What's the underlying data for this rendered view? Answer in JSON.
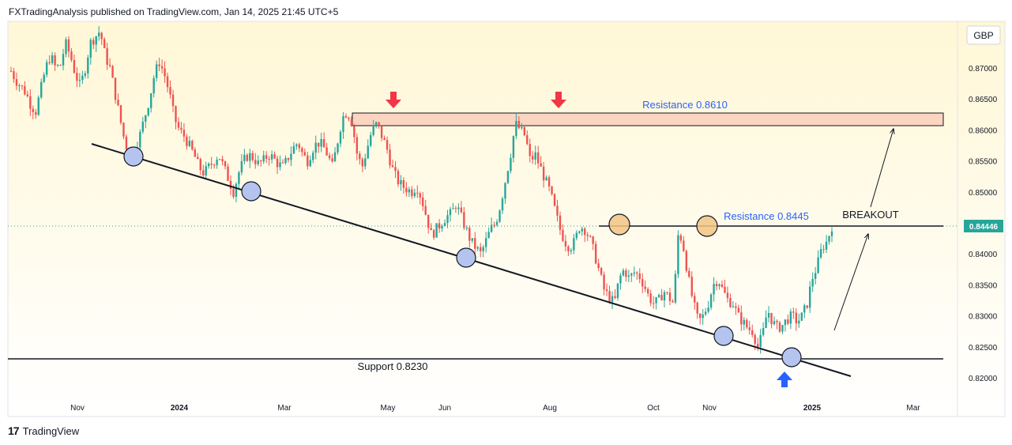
{
  "header": {
    "published": "FXTradingAnalysis published on TradingView.com, Jan 14, 2025 21:45 UTC+5"
  },
  "footer": {
    "brand": "TradingView",
    "logo": "tradingview-logo-icon"
  },
  "currency": "GBP",
  "price_tag": "0.84446",
  "colors": {
    "up": "#26a69a",
    "down": "#ef5350",
    "resistance_zone_fill": "#fbd5c0",
    "annotation_text": "#2962ff",
    "arrow_red": "#f23645",
    "arrow_blue": "#2962ff",
    "circle_blue": "#b5c4ef",
    "circle_orange": "#f2c486",
    "background_top": "#fff7d6",
    "background_bottom": "#ffffff"
  },
  "annotations": {
    "resistance_high": "Resistance 0.8610",
    "resistance_mid": "Resistance 0.8445",
    "breakout": "BREAKOUT",
    "support": "Support 0.8230"
  },
  "chart_data": {
    "type": "candlestick",
    "title": "",
    "xlabel": "",
    "ylabel": "",
    "x_ticks": [
      "Nov",
      "2024",
      "Mar",
      "May",
      "Jun",
      "Aug",
      "Oct",
      "Nov",
      "2025",
      "Mar"
    ],
    "y_ticks": [
      "0.82000",
      "0.82500",
      "0.83000",
      "0.83500",
      "0.84000",
      "0.84500",
      "0.85000",
      "0.85500",
      "0.86000",
      "0.86500",
      "0.87000"
    ],
    "ylim": [
      0.8188,
      0.8762
    ],
    "last_price": 0.84446,
    "levels": {
      "resistance_high": 0.861,
      "resistance_mid": 0.8445,
      "support": 0.823
    },
    "series": [
      {
        "values": [
          0.8695,
          0.868,
          0.867,
          0.866,
          0.864,
          0.863,
          0.8665,
          0.87,
          0.872,
          0.87,
          0.8705,
          0.874,
          0.872,
          0.869,
          0.867,
          0.87,
          0.874,
          0.875,
          0.876,
          0.872,
          0.87,
          0.866,
          0.862,
          0.858,
          0.856,
          0.857,
          0.859,
          0.862,
          0.865,
          0.869,
          0.871,
          0.869,
          0.866,
          0.862,
          0.86,
          0.859,
          0.8575,
          0.856,
          0.854,
          0.853,
          0.854,
          0.855,
          0.856,
          0.854,
          0.852,
          0.85,
          0.853,
          0.855,
          0.856,
          0.8555,
          0.8545,
          0.855,
          0.856,
          0.8555,
          0.8545,
          0.854,
          0.8555,
          0.857,
          0.858,
          0.856,
          0.855,
          0.857,
          0.858,
          0.8575,
          0.856,
          0.854,
          0.858,
          0.862,
          0.863,
          0.861,
          0.856,
          0.854,
          0.857,
          0.86,
          0.861,
          0.859,
          0.857,
          0.854,
          0.852,
          0.851,
          0.8505,
          0.85,
          0.851,
          0.849,
          0.846,
          0.843,
          0.844,
          0.845,
          0.846,
          0.8465,
          0.848,
          0.846,
          0.844,
          0.842,
          0.841,
          0.84,
          0.842,
          0.844,
          0.845,
          0.848,
          0.852,
          0.856,
          0.861,
          0.86,
          0.859,
          0.855,
          0.856,
          0.854,
          0.852,
          0.85,
          0.847,
          0.844,
          0.842,
          0.841,
          0.842,
          0.8445,
          0.844,
          0.8425,
          0.84,
          0.837,
          0.834,
          0.833,
          0.832,
          0.836,
          0.8375,
          0.836,
          0.837,
          0.8365,
          0.835,
          0.833,
          0.832,
          0.8325,
          0.834,
          0.833,
          0.832,
          0.844,
          0.841,
          0.836,
          0.832,
          0.829,
          0.83,
          0.832,
          0.835,
          0.836,
          0.834,
          0.8325,
          0.832,
          0.83,
          0.829,
          0.828,
          0.8275,
          0.825,
          0.827,
          0.831,
          0.829,
          0.828,
          0.8285,
          0.8295,
          0.83,
          0.829,
          0.83,
          0.832,
          0.836,
          0.838,
          0.841,
          0.842,
          0.8445
        ]
      }
    ]
  }
}
